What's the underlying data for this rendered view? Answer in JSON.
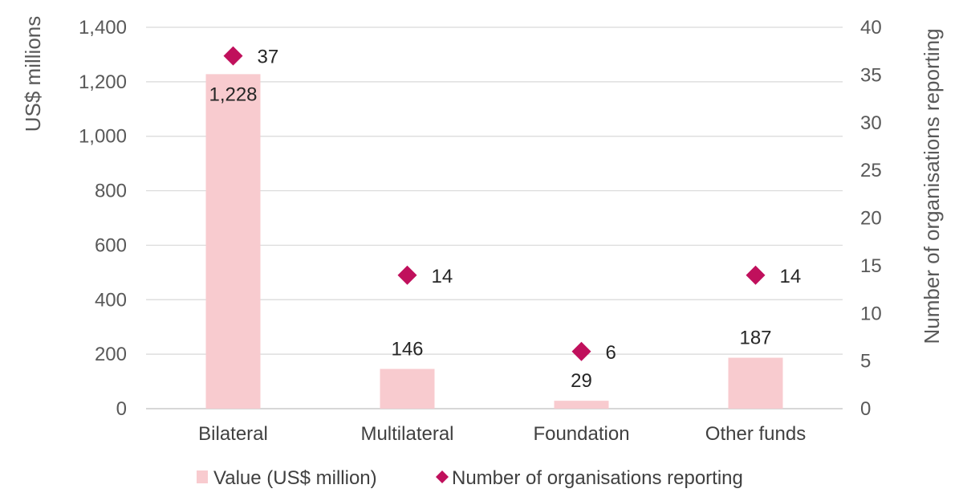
{
  "chart_data": {
    "type": "bar",
    "categories": [
      "Bilateral",
      "Multilateral",
      "Foundation",
      "Other funds"
    ],
    "series": [
      {
        "name": "Value (US$ million)",
        "type": "bar",
        "axis": "left",
        "color": "#f8cbcf",
        "values": [
          1228,
          146,
          29,
          187
        ],
        "labels": [
          "1,228",
          "146",
          "29",
          "187"
        ]
      },
      {
        "name": "Number of organisations reporting",
        "type": "scatter",
        "marker": "diamond",
        "axis": "right",
        "color": "#c0105c",
        "values": [
          37,
          14,
          6,
          14
        ],
        "labels": [
          "37",
          "14",
          "6",
          "14"
        ]
      }
    ],
    "ylabel": "US$ millions",
    "ylim": [
      0,
      1400
    ],
    "yticks": [
      "0",
      "200",
      "400",
      "600",
      "800",
      "1,000",
      "1,200",
      "1,400"
    ],
    "y2label": "Number of organisations reporting",
    "y2lim": [
      0,
      40
    ],
    "y2ticks": [
      "0",
      "5",
      "10",
      "15",
      "20",
      "25",
      "30",
      "35",
      "40"
    ],
    "grid": true,
    "legend": "bottom"
  }
}
